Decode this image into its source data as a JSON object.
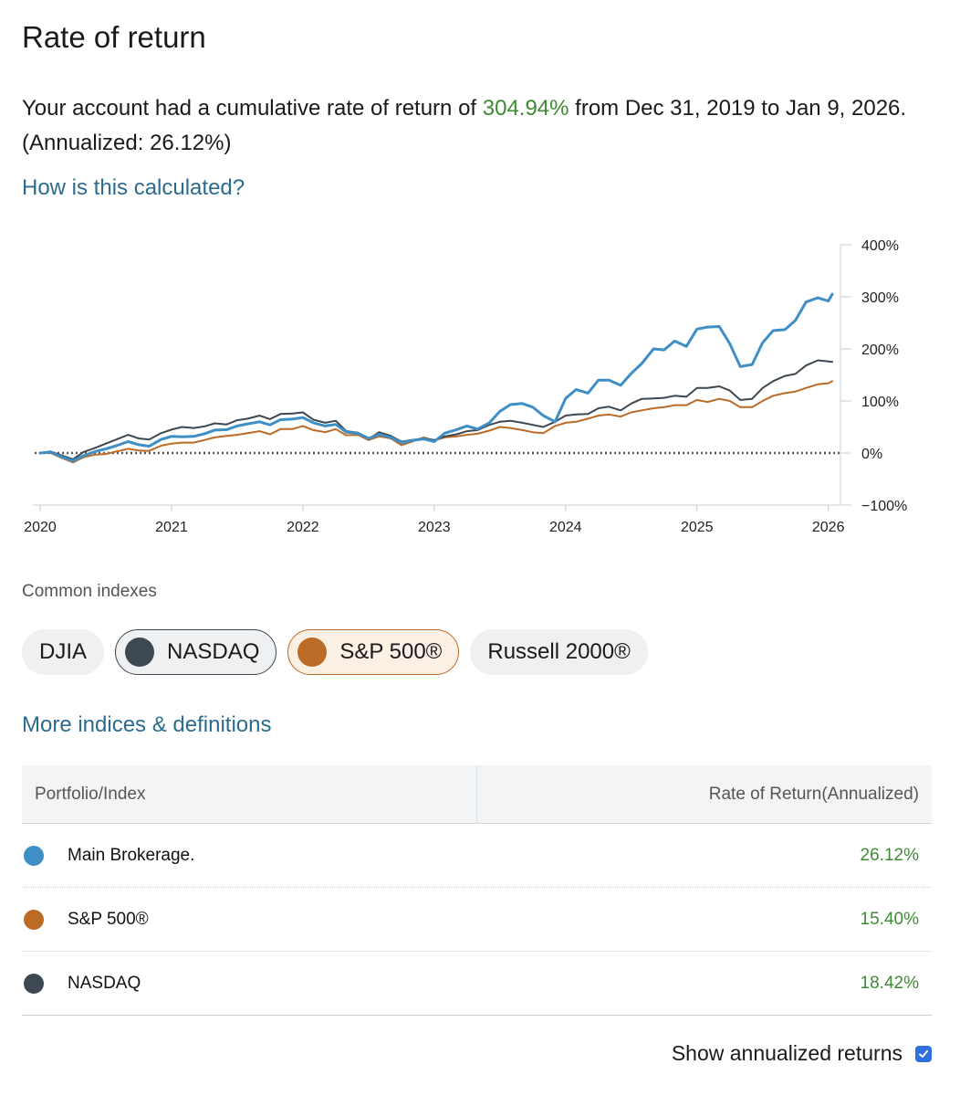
{
  "page": {
    "title": "Rate of return",
    "summary_prefix": "Your account had a cumulative rate of return of ",
    "summary_value": "304.94%",
    "summary_suffix": " from Dec 31, 2019 to Jan 9, 2026. (Annualized: 26.12%)",
    "how_link": "How is this calculated?",
    "more_link": "More indices & definitions"
  },
  "indexes": {
    "label": "Common indexes",
    "items": [
      {
        "label": "DJIA",
        "active": false,
        "color": ""
      },
      {
        "label": "NASDAQ",
        "active": true,
        "color": "#3d4852"
      },
      {
        "label": "S&P 500®",
        "active": true,
        "color": "#bb6b26"
      },
      {
        "label": "Russell 2000®",
        "active": false,
        "color": ""
      }
    ]
  },
  "table": {
    "col1": "Portfolio/Index",
    "col2": "Rate of Return(Annualized)",
    "rows": [
      {
        "name": "Main Brokerage.",
        "value": "26.12%",
        "color": "#3f8fc6"
      },
      {
        "name": "S&P 500®",
        "value": "15.40%",
        "color": "#bb6b26"
      },
      {
        "name": "NASDAQ",
        "value": "18.42%",
        "color": "#3d4852"
      }
    ]
  },
  "toggle": {
    "label": "Show annualized returns",
    "checked": true
  },
  "chart_data": {
    "type": "line",
    "x_ticks": [
      "2020",
      "2021",
      "2022",
      "2023",
      "2024",
      "2025",
      "2026"
    ],
    "y_ticks": [
      "400%",
      "300%",
      "200%",
      "100%",
      "0%",
      "−100%"
    ],
    "ylim": [
      -100,
      400
    ],
    "xlim": [
      2020.0,
      2026.03
    ],
    "zero_line": true,
    "series": [
      {
        "name": "Main Brokerage.",
        "color": "#3f8fc6",
        "points": [
          [
            2020.0,
            0
          ],
          [
            2020.08,
            2
          ],
          [
            2020.17,
            -8
          ],
          [
            2020.25,
            -15
          ],
          [
            2020.33,
            -5
          ],
          [
            2020.42,
            3
          ],
          [
            2020.5,
            8
          ],
          [
            2020.58,
            14
          ],
          [
            2020.67,
            22
          ],
          [
            2020.75,
            16
          ],
          [
            2020.83,
            13
          ],
          [
            2020.92,
            26
          ],
          [
            2021.0,
            32
          ],
          [
            2021.08,
            31
          ],
          [
            2021.17,
            32
          ],
          [
            2021.25,
            37
          ],
          [
            2021.33,
            44
          ],
          [
            2021.42,
            45
          ],
          [
            2021.5,
            52
          ],
          [
            2021.58,
            56
          ],
          [
            2021.67,
            60
          ],
          [
            2021.75,
            54
          ],
          [
            2021.83,
            64
          ],
          [
            2021.92,
            65
          ],
          [
            2022.0,
            68
          ],
          [
            2022.08,
            58
          ],
          [
            2022.17,
            52
          ],
          [
            2022.25,
            55
          ],
          [
            2022.33,
            40
          ],
          [
            2022.42,
            38
          ],
          [
            2022.5,
            28
          ],
          [
            2022.58,
            36
          ],
          [
            2022.67,
            30
          ],
          [
            2022.75,
            20
          ],
          [
            2022.83,
            24
          ],
          [
            2022.92,
            27
          ],
          [
            2023.0,
            22
          ],
          [
            2023.08,
            38
          ],
          [
            2023.17,
            45
          ],
          [
            2023.25,
            52
          ],
          [
            2023.33,
            46
          ],
          [
            2023.42,
            58
          ],
          [
            2023.5,
            80
          ],
          [
            2023.58,
            93
          ],
          [
            2023.67,
            95
          ],
          [
            2023.75,
            88
          ],
          [
            2023.83,
            72
          ],
          [
            2023.92,
            60
          ],
          [
            2024.0,
            105
          ],
          [
            2024.08,
            122
          ],
          [
            2024.17,
            115
          ],
          [
            2024.25,
            140
          ],
          [
            2024.33,
            140
          ],
          [
            2024.42,
            130
          ],
          [
            2024.5,
            153
          ],
          [
            2024.58,
            172
          ],
          [
            2024.67,
            200
          ],
          [
            2024.75,
            198
          ],
          [
            2024.83,
            215
          ],
          [
            2024.92,
            205
          ],
          [
            2025.0,
            238
          ],
          [
            2025.08,
            242
          ],
          [
            2025.17,
            243
          ],
          [
            2025.25,
            210
          ],
          [
            2025.33,
            166
          ],
          [
            2025.42,
            170
          ],
          [
            2025.5,
            212
          ],
          [
            2025.58,
            235
          ],
          [
            2025.67,
            237
          ],
          [
            2025.75,
            255
          ],
          [
            2025.83,
            290
          ],
          [
            2025.92,
            298
          ],
          [
            2026.0,
            292
          ],
          [
            2026.03,
            305
          ]
        ]
      },
      {
        "name": "NASDAQ",
        "color": "#3d4852",
        "points": [
          [
            2020.0,
            0
          ],
          [
            2020.08,
            3
          ],
          [
            2020.17,
            -5
          ],
          [
            2020.25,
            -12
          ],
          [
            2020.33,
            2
          ],
          [
            2020.42,
            10
          ],
          [
            2020.5,
            18
          ],
          [
            2020.58,
            26
          ],
          [
            2020.67,
            35
          ],
          [
            2020.75,
            28
          ],
          [
            2020.83,
            26
          ],
          [
            2020.92,
            38
          ],
          [
            2021.0,
            45
          ],
          [
            2021.08,
            50
          ],
          [
            2021.17,
            48
          ],
          [
            2021.25,
            51
          ],
          [
            2021.33,
            57
          ],
          [
            2021.42,
            55
          ],
          [
            2021.5,
            63
          ],
          [
            2021.58,
            66
          ],
          [
            2021.67,
            72
          ],
          [
            2021.75,
            65
          ],
          [
            2021.83,
            75
          ],
          [
            2021.92,
            76
          ],
          [
            2022.0,
            78
          ],
          [
            2022.08,
            64
          ],
          [
            2022.17,
            58
          ],
          [
            2022.25,
            62
          ],
          [
            2022.33,
            42
          ],
          [
            2022.42,
            39
          ],
          [
            2022.5,
            27
          ],
          [
            2022.58,
            40
          ],
          [
            2022.67,
            33
          ],
          [
            2022.75,
            22
          ],
          [
            2022.83,
            25
          ],
          [
            2022.92,
            28
          ],
          [
            2023.0,
            25
          ],
          [
            2023.08,
            32
          ],
          [
            2023.17,
            36
          ],
          [
            2023.25,
            42
          ],
          [
            2023.33,
            44
          ],
          [
            2023.42,
            54
          ],
          [
            2023.5,
            60
          ],
          [
            2023.58,
            62
          ],
          [
            2023.67,
            58
          ],
          [
            2023.75,
            54
          ],
          [
            2023.83,
            50
          ],
          [
            2023.92,
            60
          ],
          [
            2024.0,
            72
          ],
          [
            2024.08,
            74
          ],
          [
            2024.17,
            75
          ],
          [
            2024.25,
            86
          ],
          [
            2024.33,
            89
          ],
          [
            2024.42,
            82
          ],
          [
            2024.5,
            95
          ],
          [
            2024.58,
            104
          ],
          [
            2024.67,
            105
          ],
          [
            2024.75,
            106
          ],
          [
            2024.83,
            110
          ],
          [
            2024.92,
            108
          ],
          [
            2025.0,
            125
          ],
          [
            2025.08,
            125
          ],
          [
            2025.17,
            128
          ],
          [
            2025.25,
            120
          ],
          [
            2025.33,
            102
          ],
          [
            2025.42,
            104
          ],
          [
            2025.5,
            125
          ],
          [
            2025.58,
            138
          ],
          [
            2025.67,
            148
          ],
          [
            2025.75,
            152
          ],
          [
            2025.83,
            168
          ],
          [
            2025.92,
            178
          ],
          [
            2026.0,
            176
          ],
          [
            2026.03,
            175
          ]
        ]
      },
      {
        "name": "S&P 500®",
        "color": "#bb6b26",
        "points": [
          [
            2020.0,
            0
          ],
          [
            2020.08,
            0
          ],
          [
            2020.17,
            -10
          ],
          [
            2020.25,
            -18
          ],
          [
            2020.33,
            -8
          ],
          [
            2020.42,
            -3
          ],
          [
            2020.5,
            -2
          ],
          [
            2020.58,
            3
          ],
          [
            2020.67,
            8
          ],
          [
            2020.75,
            5
          ],
          [
            2020.83,
            4
          ],
          [
            2020.92,
            14
          ],
          [
            2021.0,
            18
          ],
          [
            2021.08,
            20
          ],
          [
            2021.17,
            20
          ],
          [
            2021.25,
            25
          ],
          [
            2021.33,
            30
          ],
          [
            2021.42,
            33
          ],
          [
            2021.5,
            35
          ],
          [
            2021.58,
            38
          ],
          [
            2021.67,
            42
          ],
          [
            2021.75,
            36
          ],
          [
            2021.83,
            46
          ],
          [
            2021.92,
            46
          ],
          [
            2022.0,
            52
          ],
          [
            2022.08,
            44
          ],
          [
            2022.17,
            40
          ],
          [
            2022.25,
            46
          ],
          [
            2022.33,
            34
          ],
          [
            2022.42,
            35
          ],
          [
            2022.5,
            25
          ],
          [
            2022.58,
            32
          ],
          [
            2022.67,
            28
          ],
          [
            2022.75,
            15
          ],
          [
            2022.83,
            22
          ],
          [
            2022.92,
            30
          ],
          [
            2023.0,
            24
          ],
          [
            2023.08,
            30
          ],
          [
            2023.17,
            32
          ],
          [
            2023.25,
            35
          ],
          [
            2023.33,
            37
          ],
          [
            2023.42,
            43
          ],
          [
            2023.5,
            50
          ],
          [
            2023.58,
            48
          ],
          [
            2023.67,
            44
          ],
          [
            2023.75,
            40
          ],
          [
            2023.83,
            38
          ],
          [
            2023.92,
            52
          ],
          [
            2024.0,
            58
          ],
          [
            2024.08,
            60
          ],
          [
            2024.17,
            66
          ],
          [
            2024.25,
            72
          ],
          [
            2024.33,
            74
          ],
          [
            2024.42,
            70
          ],
          [
            2024.5,
            78
          ],
          [
            2024.58,
            82
          ],
          [
            2024.67,
            86
          ],
          [
            2024.75,
            88
          ],
          [
            2024.83,
            92
          ],
          [
            2024.92,
            92
          ],
          [
            2025.0,
            102
          ],
          [
            2025.08,
            98
          ],
          [
            2025.17,
            104
          ],
          [
            2025.25,
            100
          ],
          [
            2025.33,
            88
          ],
          [
            2025.42,
            88
          ],
          [
            2025.5,
            100
          ],
          [
            2025.58,
            110
          ],
          [
            2025.67,
            115
          ],
          [
            2025.75,
            118
          ],
          [
            2025.83,
            125
          ],
          [
            2025.92,
            132
          ],
          [
            2026.0,
            134
          ],
          [
            2026.03,
            138
          ]
        ]
      }
    ]
  }
}
